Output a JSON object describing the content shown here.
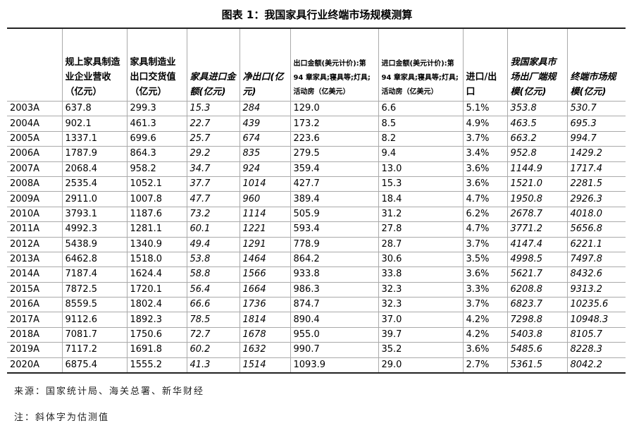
{
  "title": "图表 1：我国家具行业终端市场规模测算",
  "table": {
    "headers": [
      "规上家具制造业企业营收（亿元）",
      "家具制造业出口交货值（亿元）",
      "家具进口金额(亿元)",
      "净出口(亿元)",
      "出口金额(美元计价):第 94 章家具;寝具等;灯具;活动房（亿美元）",
      "进口金额(美元计价):第 94 章家具;寝具等;灯具;活动房（亿美元）",
      "进口/出口",
      "我国家具市场出厂端规模(亿元)",
      "终端市场规模(亿元)"
    ],
    "rows": [
      [
        "2003A",
        "637.8",
        "299.3",
        "15.3",
        "284",
        "129.0",
        "6.6",
        "5.1%",
        "353.8",
        "530.7"
      ],
      [
        "2004A",
        "902.1",
        "461.3",
        "22.7",
        "439",
        "173.2",
        "8.5",
        "4.9%",
        "463.5",
        "695.3"
      ],
      [
        "2005A",
        "1337.1",
        "699.6",
        "25.7",
        "674",
        "223.6",
        "8.2",
        "3.7%",
        "663.2",
        "994.7"
      ],
      [
        "2006A",
        "1787.9",
        "864.3",
        "29.2",
        "835",
        "279.5",
        "9.4",
        "3.4%",
        "952.8",
        "1429.2"
      ],
      [
        "2007A",
        "2068.4",
        "958.2",
        "34.7",
        "924",
        "359.4",
        "13.0",
        "3.6%",
        "1144.9",
        "1717.4"
      ],
      [
        "2008A",
        "2535.4",
        "1052.1",
        "37.7",
        "1014",
        "427.7",
        "15.3",
        "3.6%",
        "1521.0",
        "2281.5"
      ],
      [
        "2009A",
        "2911.0",
        "1007.8",
        "47.7",
        "960",
        "389.4",
        "18.4",
        "4.7%",
        "1950.8",
        "2926.3"
      ],
      [
        "2010A",
        "3793.1",
        "1187.6",
        "73.2",
        "1114",
        "505.9",
        "31.2",
        "6.2%",
        "2678.7",
        "4018.0"
      ],
      [
        "2011A",
        "4992.3",
        "1281.1",
        "60.1",
        "1221",
        "593.4",
        "27.8",
        "4.7%",
        "3771.2",
        "5656.8"
      ],
      [
        "2012A",
        "5438.9",
        "1340.9",
        "49.4",
        "1291",
        "778.9",
        "28.7",
        "3.7%",
        "4147.4",
        "6221.1"
      ],
      [
        "2013A",
        "6462.8",
        "1518.0",
        "53.8",
        "1464",
        "864.2",
        "30.6",
        "3.5%",
        "4998.5",
        "7497.8"
      ],
      [
        "2014A",
        "7187.4",
        "1624.4",
        "58.8",
        "1566",
        "933.8",
        "33.8",
        "3.6%",
        "5621.7",
        "8432.6"
      ],
      [
        "2015A",
        "7872.5",
        "1720.1",
        "56.4",
        "1664",
        "986.3",
        "32.3",
        "3.3%",
        "6208.8",
        "9313.2"
      ],
      [
        "2016A",
        "8559.5",
        "1802.4",
        "66.6",
        "1736",
        "874.7",
        "32.3",
        "3.7%",
        "6823.7",
        "10235.6"
      ],
      [
        "2017A",
        "9112.6",
        "1892.3",
        "78.5",
        "1814",
        "890.4",
        "37.0",
        "4.2%",
        "7298.8",
        "10948.3"
      ],
      [
        "2018A",
        "7081.7",
        "1750.6",
        "72.7",
        "1678",
        "955.0",
        "39.7",
        "4.2%",
        "5403.8",
        "8105.7"
      ],
      [
        "2019A",
        "7117.2",
        "1691.8",
        "60.2",
        "1632",
        "990.7",
        "35.2",
        "3.6%",
        "5485.6",
        "8228.3"
      ],
      [
        "2020A",
        "6875.4",
        "1555.2",
        "41.3",
        "1514",
        "1093.9",
        "29.0",
        "2.7%",
        "5361.5",
        "8042.2"
      ]
    ]
  },
  "source": "来源：国家统计局、海关总署、新华财经",
  "note": "注：斜体字为估测值"
}
